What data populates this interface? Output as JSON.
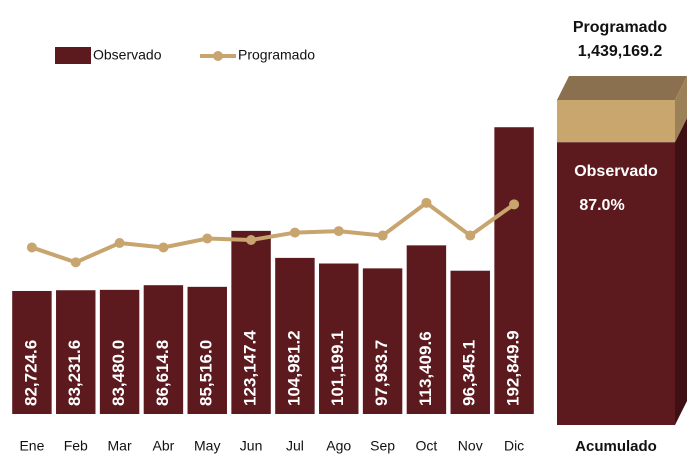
{
  "chart_data": {
    "type": "bar",
    "categories": [
      "Ene",
      "Feb",
      "Mar",
      "Abr",
      "May",
      "Jun",
      "Jul",
      "Ago",
      "Sep",
      "Oct",
      "Nov",
      "Dic"
    ],
    "series": [
      {
        "name": "Observado",
        "color": "#5c1a1f",
        "values": [
          82724.6,
          83231.6,
          83480.0,
          86614.8,
          85516.0,
          123147.4,
          104981.2,
          101199.1,
          97933.7,
          113409.6,
          96345.1,
          192849.9
        ],
        "value_labels": [
          "82,724.6",
          "83,231.6",
          "83,480.0",
          "86,614.8",
          "85,516.0",
          "123,147.4",
          "104,981.2",
          "101,199.1",
          "97,933.7",
          "113,409.6",
          "96,345.1",
          "192,849.9"
        ]
      },
      {
        "name": "Programado",
        "color": "#c8a46e",
        "type": "line",
        "values": [
          112000,
          102000,
          115000,
          112000,
          118000,
          117000,
          122000,
          123000,
          120000,
          142000,
          120000,
          141000
        ]
      }
    ],
    "ylim": [
      0,
      278400
    ],
    "legend": "top-left",
    "accumulated": {
      "name": "Acumulado",
      "total": 1439169.2,
      "total_label": "1,439,169.2",
      "observed_pct": 87.0,
      "observed_pct_label": "87.0%"
    }
  }
}
